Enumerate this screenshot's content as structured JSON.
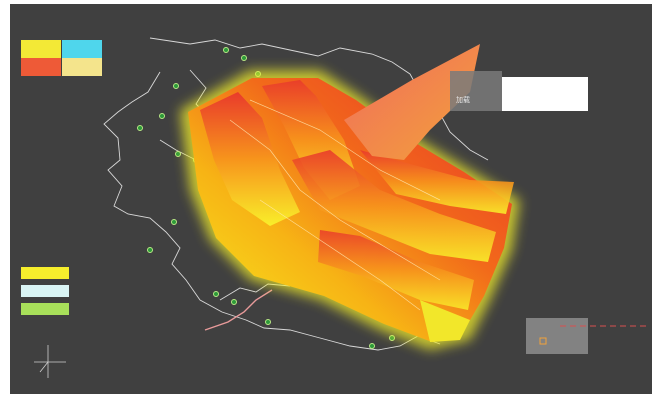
{
  "panel": {
    "label": "加载"
  }
}
